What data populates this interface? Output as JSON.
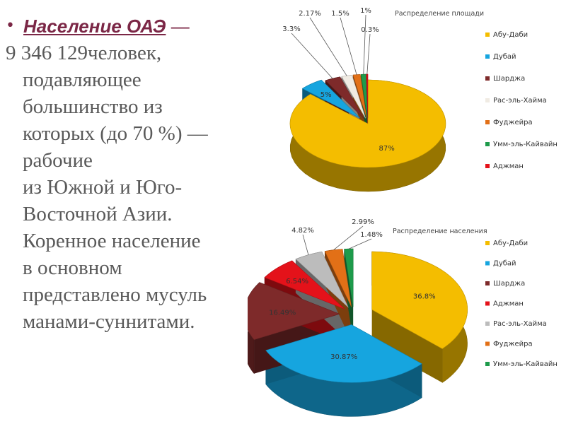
{
  "text": {
    "bullet": "•",
    "title": "Население ОАЭ",
    "dash": "—",
    "lines": [
      "9 346 129человек,",
      "подавляющее",
      "большинство из",
      "которых (до 70 %) —",
      "рабочие",
      "из Южной и Юго-",
      "Восточной Азии.",
      "Коренное население",
      "в основном",
      "представлено мусуль",
      "манами-суннитами."
    ]
  },
  "chart_data": [
    {
      "type": "pie",
      "title": "Распределение площади",
      "categories": [
        "Абу-Даби",
        "Дубай",
        "Шарджа",
        "Рас-эль-Хайма",
        "Фуджейра",
        "Умм-эль-Кайвайн",
        "Аджман"
      ],
      "values": [
        87,
        5,
        3.3,
        2.17,
        1.5,
        1,
        0.3
      ],
      "labels": [
        "87%",
        "5%",
        "3.3%",
        "2.17%",
        "1.5%",
        "1%",
        "0.3%"
      ],
      "colors": [
        "#f4bd00",
        "#16a5df",
        "#7e2a2a",
        "#f0ebe3",
        "#e27017",
        "#1e9b4b",
        "#e4121a"
      ],
      "legend_position": "right"
    },
    {
      "type": "pie",
      "title": "Распределение населения",
      "categories": [
        "Абу-Даби",
        "Дубай",
        "Шарджа",
        "Аджман",
        "Рас-эль-Хайма",
        "Фуджейра",
        "Умм-эль-Кайвайн"
      ],
      "values": [
        36.8,
        30.87,
        16.49,
        6.54,
        4.82,
        2.99,
        1.48
      ],
      "labels": [
        "36.8%",
        "30.87%",
        "16.49%",
        "6.54%",
        "4.82%",
        "2.99%",
        "1.48%"
      ],
      "colors": [
        "#f4bd00",
        "#16a5df",
        "#7e2a2a",
        "#e4121a",
        "#bcbcbc",
        "#e27017",
        "#1e9b4b"
      ],
      "legend_position": "right"
    }
  ]
}
